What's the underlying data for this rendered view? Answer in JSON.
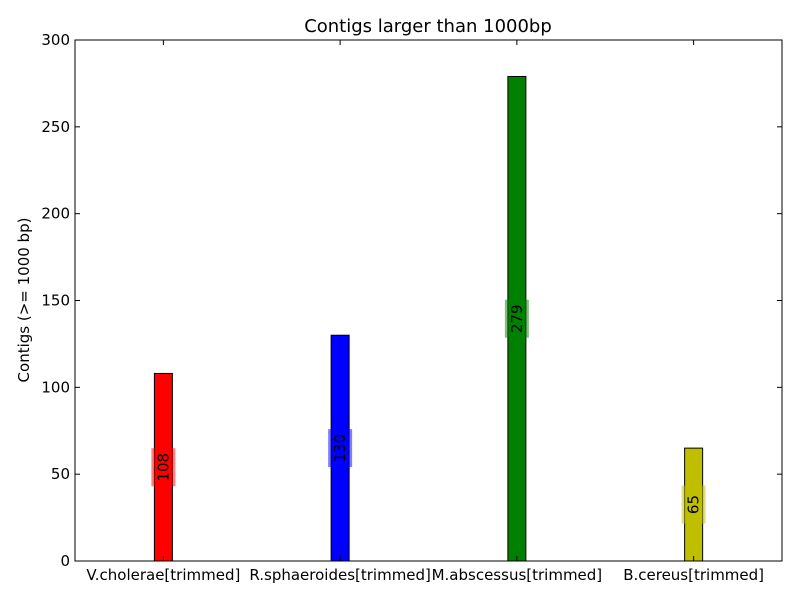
{
  "chart_data": {
    "type": "bar",
    "title": "Contigs larger than 1000bp",
    "xlabel": "",
    "ylabel": "Contigs (>= 1000 bp)",
    "ylim": [
      0,
      300
    ],
    "yticks": [
      0,
      50,
      100,
      150,
      200,
      250,
      300
    ],
    "categories": [
      "V.cholerae[trimmed]",
      "R.sphaeroides[trimmed]",
      "M.abscessus[trimmed]",
      "B.cereus[trimmed]"
    ],
    "values": [
      108,
      130,
      279,
      65
    ],
    "value_labels": [
      "108",
      "130",
      "279",
      "65"
    ],
    "colors": [
      "#ff0000",
      "#0000ff",
      "#008000",
      "#bfbf00"
    ],
    "grid": false,
    "legend": "none"
  }
}
